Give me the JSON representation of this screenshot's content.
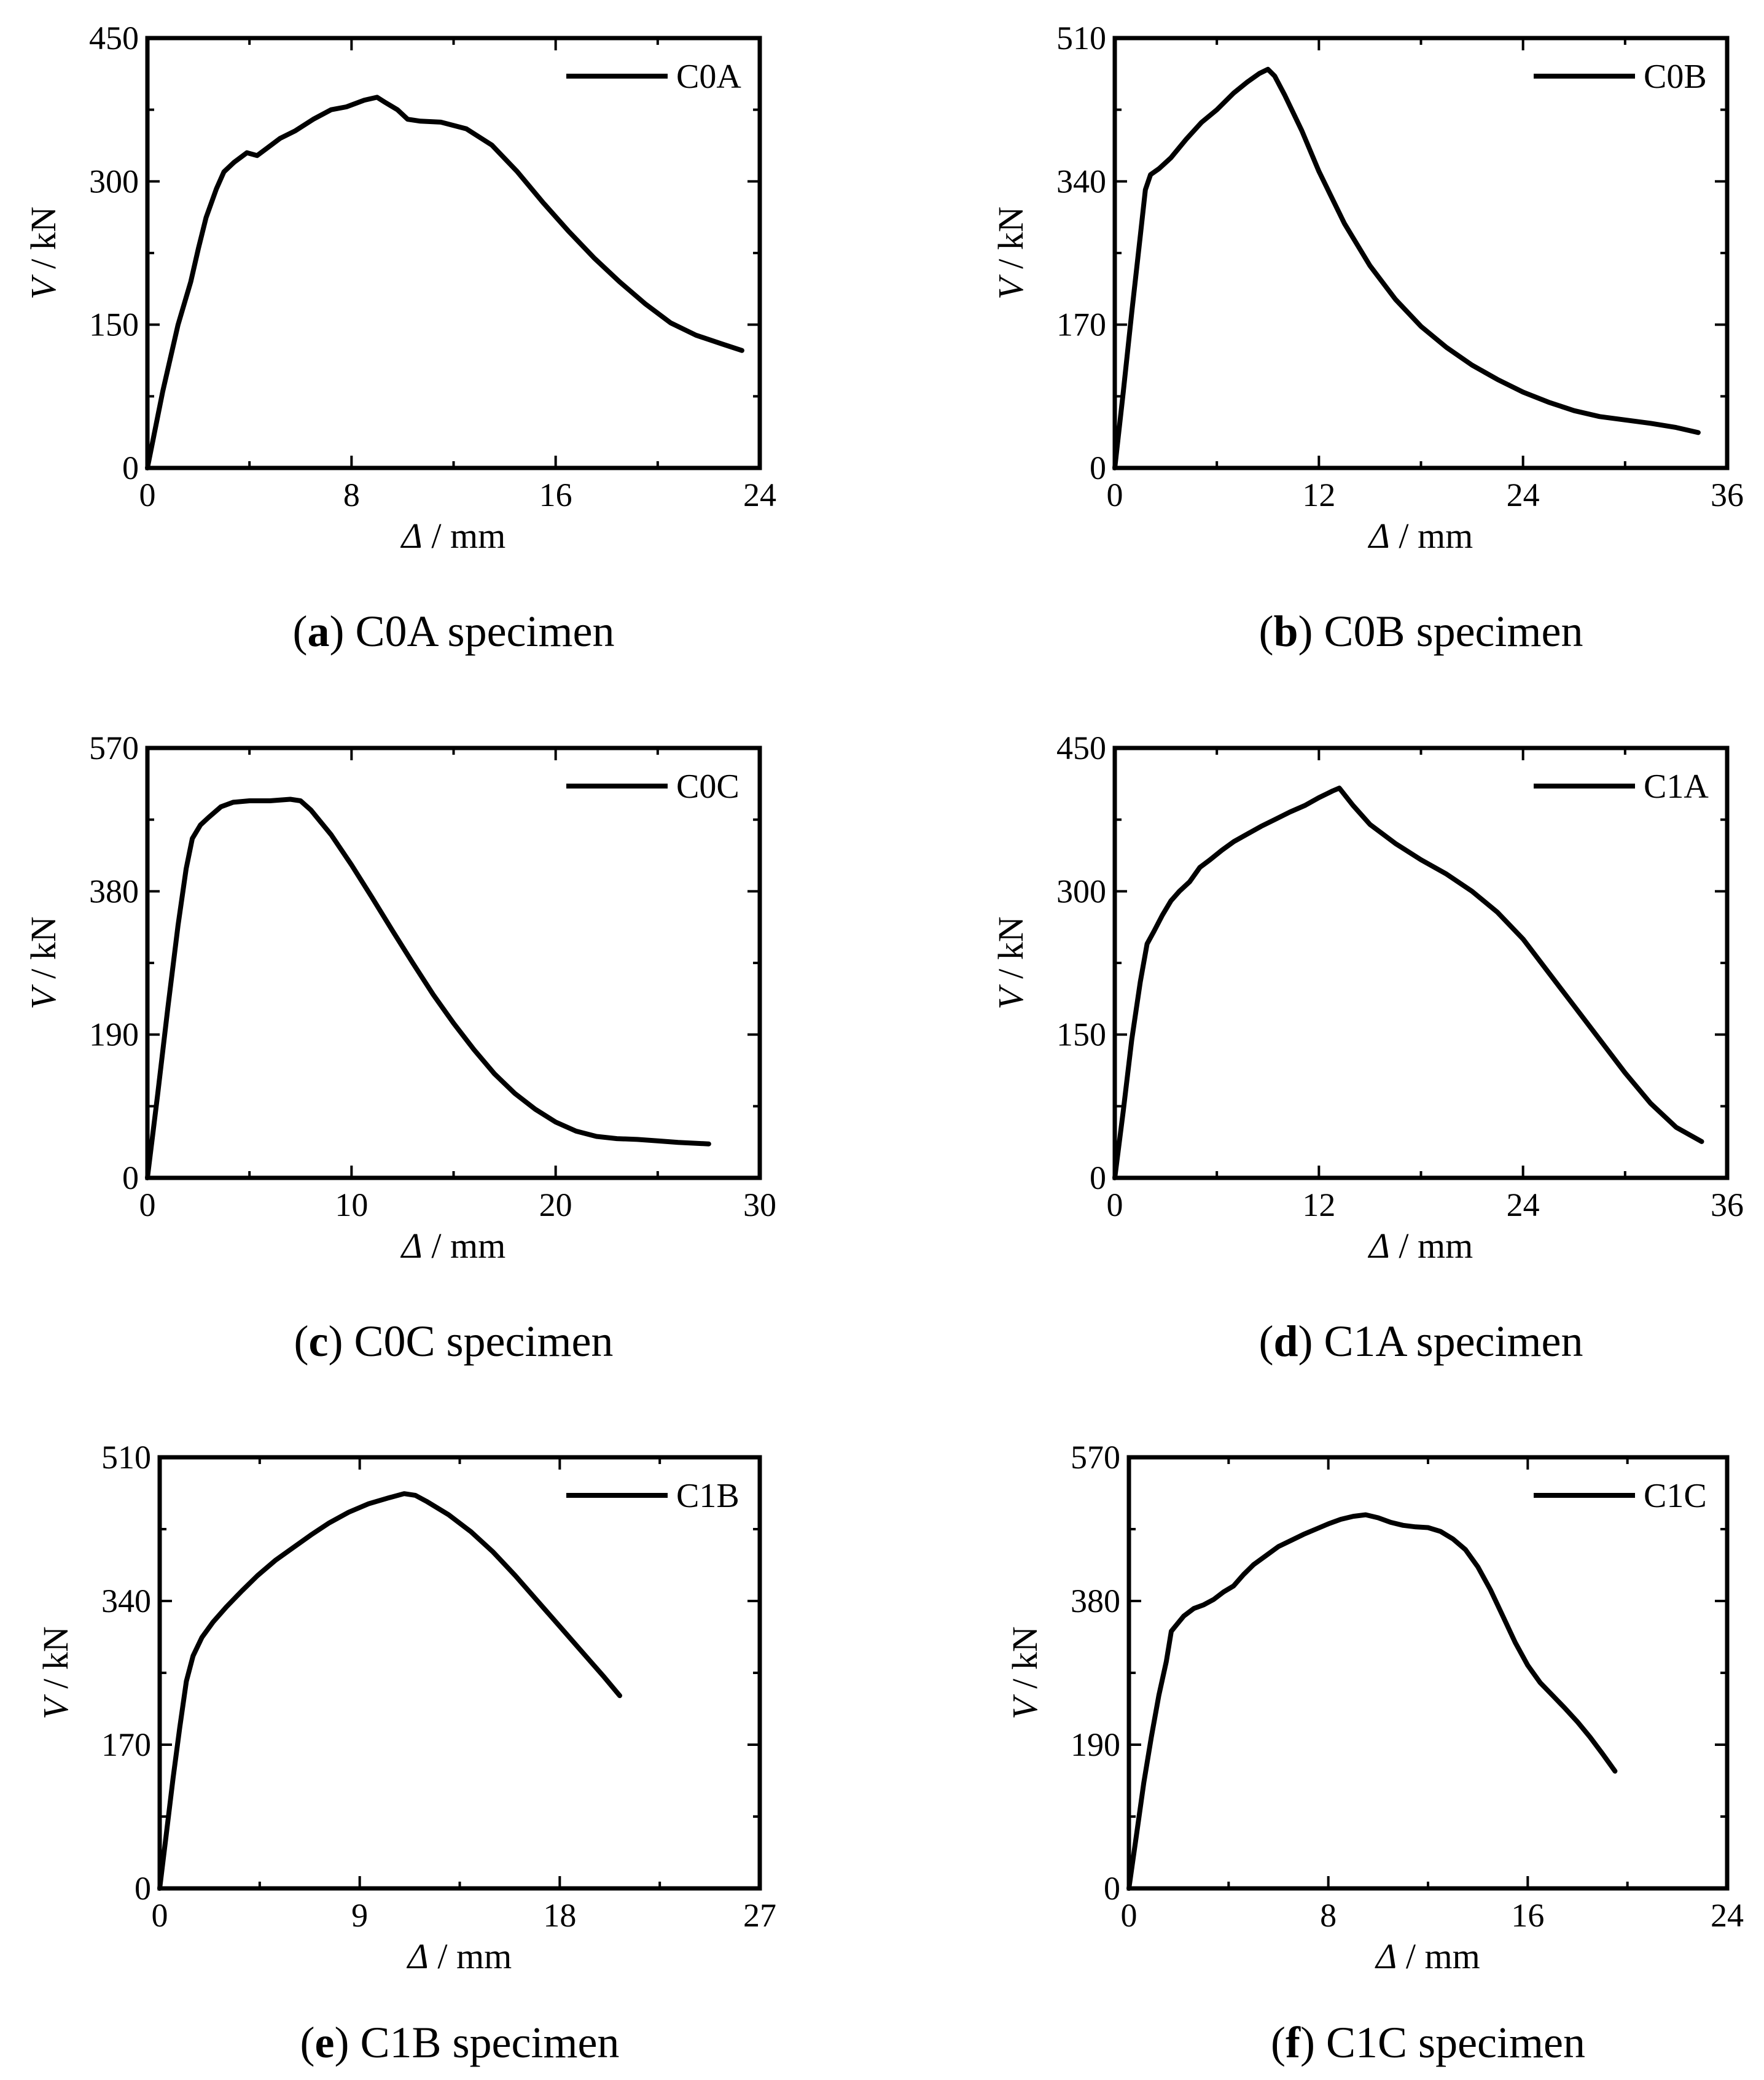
{
  "figure": {
    "panels": [
      {
        "id": "a",
        "caption_letter": "a",
        "caption_text": "C0A specimen",
        "legend": "C0A",
        "xlabel_symbol": "Δ",
        "xlabel_unit": " / mm",
        "ylabel_symbol": "V",
        "ylabel_unit": " / kN"
      },
      {
        "id": "b",
        "caption_letter": "b",
        "caption_text": "C0B specimen",
        "legend": "C0B",
        "xlabel_symbol": "Δ",
        "xlabel_unit": " / mm",
        "ylabel_symbol": "V",
        "ylabel_unit": " / kN"
      },
      {
        "id": "c",
        "caption_letter": "c",
        "caption_text": "C0C specimen",
        "legend": "C0C",
        "xlabel_symbol": "Δ",
        "xlabel_unit": " / mm",
        "ylabel_symbol": "V",
        "ylabel_unit": " / kN"
      },
      {
        "id": "d",
        "caption_letter": "d",
        "caption_text": "C1A specimen",
        "legend": "C1A",
        "xlabel_symbol": "Δ",
        "xlabel_unit": " / mm",
        "ylabel_symbol": "V",
        "ylabel_unit": " / kN"
      },
      {
        "id": "e",
        "caption_letter": "e",
        "caption_text": "C1B specimen",
        "legend": "C1B",
        "xlabel_symbol": "Δ",
        "xlabel_unit": " / mm",
        "ylabel_symbol": "V",
        "ylabel_unit": " / kN"
      },
      {
        "id": "f",
        "caption_letter": "f",
        "caption_text": "C1C specimen",
        "legend": "C1C",
        "xlabel_symbol": "Δ",
        "xlabel_unit": " / mm",
        "ylabel_symbol": "V",
        "ylabel_unit": " / kN"
      }
    ]
  },
  "chart_data": [
    {
      "type": "line",
      "title": "C0A specimen",
      "xlabel": "Δ / mm",
      "ylabel": "V / kN",
      "xlim": [
        0,
        24
      ],
      "ylim": [
        0,
        450
      ],
      "xticks": [
        0,
        8,
        16,
        24
      ],
      "yticks": [
        0,
        150,
        300,
        450
      ],
      "legend_position": "top-right",
      "series": [
        {
          "name": "C0A",
          "x": [
            0,
            0.6,
            1.2,
            1.7,
            2.0,
            2.3,
            2.7,
            3.0,
            3.4,
            3.9,
            4.3,
            4.7,
            5.2,
            5.8,
            6.5,
            7.2,
            7.8,
            8.5,
            9.0,
            9.3,
            9.8,
            10.2,
            10.7,
            11.5,
            12.5,
            13.5,
            14.5,
            15.5,
            16.5,
            17.5,
            18.5,
            19.5,
            20.5,
            21.5,
            22.5,
            23.3
          ],
          "y": [
            0,
            80,
            150,
            195,
            230,
            262,
            292,
            310,
            320,
            330,
            327,
            335,
            345,
            353,
            365,
            375,
            378,
            385,
            388,
            383,
            375,
            365,
            363,
            362,
            355,
            338,
            310,
            278,
            248,
            220,
            195,
            172,
            152,
            139,
            130,
            123
          ]
        }
      ]
    },
    {
      "type": "line",
      "title": "C0B specimen",
      "xlabel": "Δ / mm",
      "ylabel": "V / kN",
      "xlim": [
        0,
        36
      ],
      "ylim": [
        0,
        510
      ],
      "xticks": [
        0,
        12,
        24,
        36
      ],
      "yticks": [
        0,
        170,
        340,
        510
      ],
      "legend_position": "top-right",
      "series": [
        {
          "name": "C0B",
          "x": [
            0,
            0.5,
            1.0,
            1.5,
            1.8,
            2.1,
            2.6,
            3.3,
            4.2,
            5.1,
            6.0,
            7.0,
            7.8,
            8.5,
            9.0,
            9.4,
            10.0,
            11.0,
            12.0,
            13.5,
            15.0,
            16.5,
            18.0,
            19.5,
            21.0,
            22.5,
            24.0,
            25.5,
            27.0,
            28.5,
            30.0,
            31.5,
            33.0,
            34.3
          ],
          "y": [
            0,
            90,
            185,
            275,
            330,
            348,
            355,
            368,
            390,
            410,
            425,
            445,
            458,
            468,
            473,
            465,
            442,
            400,
            352,
            290,
            240,
            200,
            168,
            143,
            122,
            105,
            90,
            78,
            68,
            61,
            57,
            53,
            48,
            42
          ]
        }
      ]
    },
    {
      "type": "line",
      "title": "C0C specimen",
      "xlabel": "Δ / mm",
      "ylabel": "V / kN",
      "xlim": [
        0,
        30
      ],
      "ylim": [
        0,
        570
      ],
      "xticks": [
        0,
        10,
        20,
        30
      ],
      "yticks": [
        0,
        190,
        380,
        570
      ],
      "legend_position": "top-right",
      "series": [
        {
          "name": "C0C",
          "x": [
            0,
            0.5,
            1.0,
            1.5,
            1.9,
            2.2,
            2.6,
            3.0,
            3.6,
            4.2,
            5.0,
            6.0,
            7.0,
            7.5,
            8.0,
            9.0,
            10.0,
            11.0,
            12.0,
            13.0,
            14.0,
            15.0,
            16.0,
            17.0,
            18.0,
            19.0,
            20.0,
            21.0,
            22.0,
            23.0,
            24.0,
            25.0,
            26.0,
            27.5
          ],
          "y": [
            0,
            110,
            225,
            335,
            410,
            450,
            468,
            478,
            492,
            498,
            500,
            500,
            502,
            500,
            488,
            455,
            415,
            372,
            328,
            285,
            243,
            205,
            170,
            138,
            112,
            91,
            74,
            62,
            55,
            52,
            51,
            49,
            47,
            45
          ]
        }
      ]
    },
    {
      "type": "line",
      "title": "C1A specimen",
      "xlabel": "Δ / mm",
      "ylabel": "V / kN",
      "xlim": [
        0,
        36
      ],
      "ylim": [
        0,
        450
      ],
      "xticks": [
        0,
        12,
        24,
        36
      ],
      "yticks": [
        0,
        150,
        300,
        450
      ],
      "legend_position": "top-right",
      "series": [
        {
          "name": "C1A",
          "x": [
            0,
            0.5,
            1.0,
            1.5,
            1.9,
            2.3,
            2.8,
            3.3,
            3.8,
            4.4,
            5.0,
            5.6,
            6.3,
            7.0,
            7.8,
            8.6,
            9.4,
            10.3,
            11.2,
            12.0,
            12.8,
            13.2,
            14.0,
            15.0,
            16.5,
            18.0,
            19.5,
            21.0,
            22.5,
            24.0,
            25.5,
            27.0,
            28.5,
            30.0,
            31.5,
            33.0,
            34.5
          ],
          "y": [
            0,
            70,
            145,
            205,
            245,
            258,
            275,
            290,
            300,
            310,
            325,
            333,
            343,
            352,
            360,
            368,
            375,
            383,
            390,
            398,
            405,
            408,
            390,
            370,
            350,
            333,
            318,
            300,
            278,
            250,
            215,
            180,
            145,
            110,
            78,
            53,
            38
          ]
        }
      ]
    },
    {
      "type": "line",
      "title": "C1B specimen",
      "xlabel": "Δ / mm",
      "ylabel": "V / kN",
      "xlim": [
        0,
        27
      ],
      "ylim": [
        0,
        510
      ],
      "xticks": [
        0,
        9,
        18,
        27
      ],
      "yticks": [
        0,
        170,
        340,
        510
      ],
      "legend_position": "top-right",
      "series": [
        {
          "name": "C1B",
          "x": [
            0,
            0.3,
            0.6,
            0.9,
            1.2,
            1.5,
            1.9,
            2.4,
            3.0,
            3.7,
            4.4,
            5.2,
            6.0,
            6.8,
            7.6,
            8.5,
            9.4,
            10.3,
            11.0,
            11.5,
            12.0,
            13.0,
            14.0,
            15.0,
            16.0,
            17.0,
            18.0,
            19.0,
            20.0,
            20.7
          ],
          "y": [
            0,
            65,
            130,
            190,
            245,
            275,
            297,
            315,
            333,
            352,
            370,
            388,
            403,
            418,
            432,
            445,
            455,
            462,
            467,
            465,
            458,
            442,
            422,
            398,
            370,
            340,
            310,
            280,
            250,
            228
          ]
        }
      ]
    },
    {
      "type": "line",
      "title": "C1C specimen",
      "xlabel": "Δ / mm",
      "ylabel": "V / kN",
      "xlim": [
        0,
        24
      ],
      "ylim": [
        0,
        570
      ],
      "xticks": [
        0,
        8,
        16,
        24
      ],
      "yticks": [
        0,
        190,
        380,
        570
      ],
      "legend_position": "top-right",
      "series": [
        {
          "name": "C1C",
          "x": [
            0,
            0.3,
            0.6,
            0.9,
            1.2,
            1.5,
            1.7,
            1.9,
            2.2,
            2.6,
            3.0,
            3.4,
            3.8,
            4.2,
            4.6,
            5.0,
            5.5,
            6.0,
            6.5,
            7.0,
            7.5,
            8.0,
            8.5,
            9.0,
            9.5,
            10.0,
            10.5,
            11.0,
            11.5,
            12.0,
            12.5,
            13.0,
            13.5,
            14.0,
            14.5,
            15.0,
            15.5,
            16.0,
            16.5,
            17.0,
            17.5,
            18.0,
            18.5,
            19.0,
            19.5
          ],
          "y": [
            0,
            70,
            140,
            200,
            255,
            300,
            340,
            348,
            360,
            370,
            375,
            382,
            392,
            400,
            415,
            428,
            440,
            452,
            460,
            468,
            475,
            482,
            488,
            492,
            494,
            490,
            484,
            480,
            478,
            477,
            472,
            462,
            448,
            425,
            395,
            360,
            325,
            295,
            272,
            255,
            238,
            220,
            200,
            178,
            155
          ]
        }
      ]
    }
  ]
}
